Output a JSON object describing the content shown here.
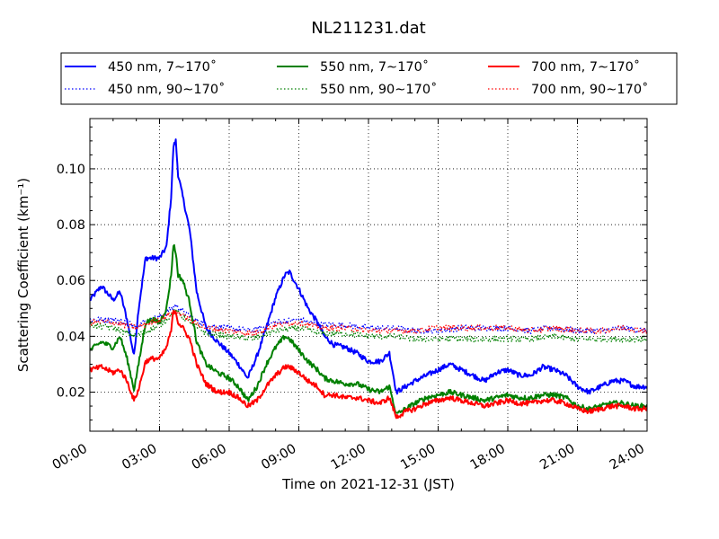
{
  "chart_data": {
    "type": "line",
    "title": "NL211231.dat",
    "xlabel": "Time on 2021-12-31 (JST)",
    "ylabel": "Scattering Coefficient (km⁻¹)",
    "xlim": [
      0,
      24
    ],
    "ylim": [
      0.006,
      0.118
    ],
    "x_ticks": [
      0,
      3,
      6,
      9,
      12,
      15,
      18,
      21,
      24
    ],
    "x_tick_labels": [
      "00:00",
      "03:00",
      "06:00",
      "09:00",
      "12:00",
      "15:00",
      "18:00",
      "21:00",
      "24:00"
    ],
    "y_ticks": [
      0.02,
      0.04,
      0.06,
      0.08,
      0.1
    ],
    "y_tick_labels": [
      "0.02",
      "0.04",
      "0.06",
      "0.08",
      "0.10"
    ],
    "grid": true,
    "legend_position": "top",
    "legend_entries": [
      "450 nm, 7∼170˚",
      "450 nm, 90∼170˚",
      "550 nm, 7∼170˚",
      "550 nm, 90∼170˚",
      "700 nm, 7∼170˚",
      "700 nm, 90∼170˚"
    ],
    "series": [
      {
        "name": "450 nm, 7∼170˚",
        "color": "#0000ff",
        "style": "solid",
        "x": [
          0,
          0.5,
          1,
          1.3,
          1.6,
          1.9,
          2.1,
          2.4,
          2.7,
          3.0,
          3.3,
          3.5,
          3.6,
          3.7,
          3.8,
          4.0,
          4.3,
          4.6,
          5.0,
          5.5,
          6.0,
          6.4,
          6.8,
          7.2,
          7.6,
          8.0,
          8.4,
          8.6,
          9.0,
          9.4,
          9.8,
          10.1,
          10.5,
          11.0,
          11.5,
          12.0,
          12.5,
          12.9,
          13.2,
          13.6,
          14.0,
          14.5,
          15.0,
          15.5,
          16.0,
          16.5,
          17.0,
          17.5,
          18.0,
          18.5,
          19.0,
          19.5,
          20.0,
          20.5,
          21.0,
          21.5,
          22.0,
          22.5,
          23.0,
          23.5,
          24.0
        ],
        "y": [
          0.053,
          0.058,
          0.053,
          0.056,
          0.046,
          0.033,
          0.05,
          0.068,
          0.068,
          0.068,
          0.072,
          0.09,
          0.108,
          0.11,
          0.098,
          0.09,
          0.078,
          0.056,
          0.043,
          0.038,
          0.034,
          0.03,
          0.025,
          0.033,
          0.043,
          0.054,
          0.062,
          0.063,
          0.057,
          0.05,
          0.045,
          0.04,
          0.037,
          0.036,
          0.034,
          0.031,
          0.031,
          0.034,
          0.02,
          0.022,
          0.024,
          0.026,
          0.028,
          0.03,
          0.028,
          0.026,
          0.024,
          0.027,
          0.028,
          0.026,
          0.026,
          0.029,
          0.028,
          0.026,
          0.022,
          0.02,
          0.022,
          0.024,
          0.024,
          0.022,
          0.022
        ]
      },
      {
        "name": "450 nm, 90∼170˚",
        "color": "#0000ff",
        "style": "dotted",
        "x": [
          0,
          1,
          2,
          3,
          3.7,
          4.5,
          5,
          6,
          7,
          8,
          9,
          10,
          11,
          12,
          13,
          14,
          15,
          16,
          17,
          18,
          19,
          20,
          21,
          22,
          23,
          24
        ],
        "y": [
          0.046,
          0.046,
          0.044,
          0.047,
          0.051,
          0.046,
          0.044,
          0.043,
          0.042,
          0.045,
          0.046,
          0.044,
          0.044,
          0.043,
          0.043,
          0.042,
          0.042,
          0.043,
          0.043,
          0.043,
          0.042,
          0.043,
          0.042,
          0.042,
          0.043,
          0.042
        ]
      },
      {
        "name": "550 nm, 7∼170˚",
        "color": "#008000",
        "style": "solid",
        "x": [
          0,
          0.5,
          1,
          1.3,
          1.6,
          1.9,
          2.1,
          2.4,
          2.7,
          3.0,
          3.3,
          3.5,
          3.6,
          3.7,
          3.8,
          4.0,
          4.3,
          4.6,
          5.0,
          5.5,
          6.0,
          6.4,
          6.8,
          7.2,
          7.6,
          8.0,
          8.4,
          8.6,
          9.0,
          9.4,
          9.8,
          10.1,
          10.5,
          11.0,
          11.5,
          12.0,
          12.5,
          12.9,
          13.2,
          13.6,
          14.0,
          14.5,
          15.0,
          15.5,
          16.0,
          16.5,
          17.0,
          17.5,
          18.0,
          18.5,
          19.0,
          19.5,
          20.0,
          20.5,
          21.0,
          21.5,
          22.0,
          22.5,
          23.0,
          23.5,
          24.0
        ],
        "y": [
          0.035,
          0.038,
          0.036,
          0.04,
          0.032,
          0.021,
          0.03,
          0.045,
          0.046,
          0.045,
          0.05,
          0.062,
          0.073,
          0.07,
          0.062,
          0.06,
          0.052,
          0.038,
          0.03,
          0.027,
          0.025,
          0.022,
          0.017,
          0.022,
          0.03,
          0.036,
          0.04,
          0.039,
          0.035,
          0.031,
          0.028,
          0.025,
          0.024,
          0.023,
          0.023,
          0.021,
          0.02,
          0.022,
          0.012,
          0.014,
          0.016,
          0.018,
          0.019,
          0.02,
          0.019,
          0.018,
          0.017,
          0.018,
          0.019,
          0.018,
          0.018,
          0.019,
          0.019,
          0.018,
          0.015,
          0.014,
          0.015,
          0.016,
          0.016,
          0.015,
          0.015
        ]
      },
      {
        "name": "550 nm, 90∼170˚",
        "color": "#008000",
        "style": "dotted",
        "x": [
          0,
          1,
          2,
          3,
          3.7,
          4.5,
          5,
          6,
          7,
          8,
          9,
          10,
          11,
          12,
          13,
          14,
          15,
          16,
          17,
          18,
          19,
          20,
          21,
          22,
          23,
          24
        ],
        "y": [
          0.044,
          0.043,
          0.04,
          0.044,
          0.049,
          0.044,
          0.041,
          0.04,
          0.039,
          0.042,
          0.043,
          0.041,
          0.041,
          0.04,
          0.04,
          0.039,
          0.039,
          0.039,
          0.039,
          0.039,
          0.039,
          0.04,
          0.039,
          0.039,
          0.039,
          0.039
        ]
      },
      {
        "name": "700 nm, 7∼170˚",
        "color": "#ff0000",
        "style": "solid",
        "x": [
          0,
          0.5,
          1,
          1.3,
          1.6,
          1.9,
          2.1,
          2.4,
          2.7,
          3.0,
          3.3,
          3.5,
          3.6,
          3.7,
          3.8,
          4.0,
          4.3,
          4.6,
          5.0,
          5.5,
          6.0,
          6.4,
          6.8,
          7.2,
          7.6,
          8.0,
          8.4,
          8.6,
          9.0,
          9.4,
          9.8,
          10.1,
          10.5,
          11.0,
          11.5,
          12.0,
          12.5,
          12.9,
          13.2,
          13.6,
          14.0,
          14.5,
          15.0,
          15.5,
          16.0,
          16.5,
          17.0,
          17.5,
          18.0,
          18.5,
          19.0,
          19.5,
          20.0,
          20.5,
          21.0,
          21.5,
          22.0,
          22.5,
          23.0,
          23.5,
          24.0
        ],
        "y": [
          0.028,
          0.029,
          0.027,
          0.028,
          0.024,
          0.017,
          0.021,
          0.031,
          0.032,
          0.032,
          0.036,
          0.042,
          0.049,
          0.049,
          0.045,
          0.043,
          0.039,
          0.03,
          0.023,
          0.02,
          0.02,
          0.018,
          0.015,
          0.017,
          0.022,
          0.026,
          0.029,
          0.029,
          0.027,
          0.024,
          0.022,
          0.019,
          0.019,
          0.018,
          0.018,
          0.017,
          0.016,
          0.018,
          0.011,
          0.013,
          0.014,
          0.016,
          0.017,
          0.018,
          0.017,
          0.016,
          0.015,
          0.016,
          0.017,
          0.016,
          0.016,
          0.017,
          0.017,
          0.016,
          0.014,
          0.013,
          0.014,
          0.015,
          0.015,
          0.014,
          0.014
        ]
      },
      {
        "name": "700 nm, 90∼170˚",
        "color": "#ff0000",
        "style": "dotted",
        "x": [
          0,
          1,
          2,
          3,
          3.7,
          4.5,
          5,
          6,
          7,
          8,
          9,
          10,
          11,
          12,
          13,
          14,
          15,
          16,
          17,
          18,
          19,
          20,
          21,
          22,
          23,
          24
        ],
        "y": [
          0.045,
          0.045,
          0.043,
          0.046,
          0.049,
          0.045,
          0.043,
          0.042,
          0.041,
          0.044,
          0.045,
          0.043,
          0.043,
          0.042,
          0.042,
          0.042,
          0.043,
          0.043,
          0.043,
          0.043,
          0.042,
          0.043,
          0.042,
          0.042,
          0.043,
          0.042
        ]
      }
    ]
  }
}
